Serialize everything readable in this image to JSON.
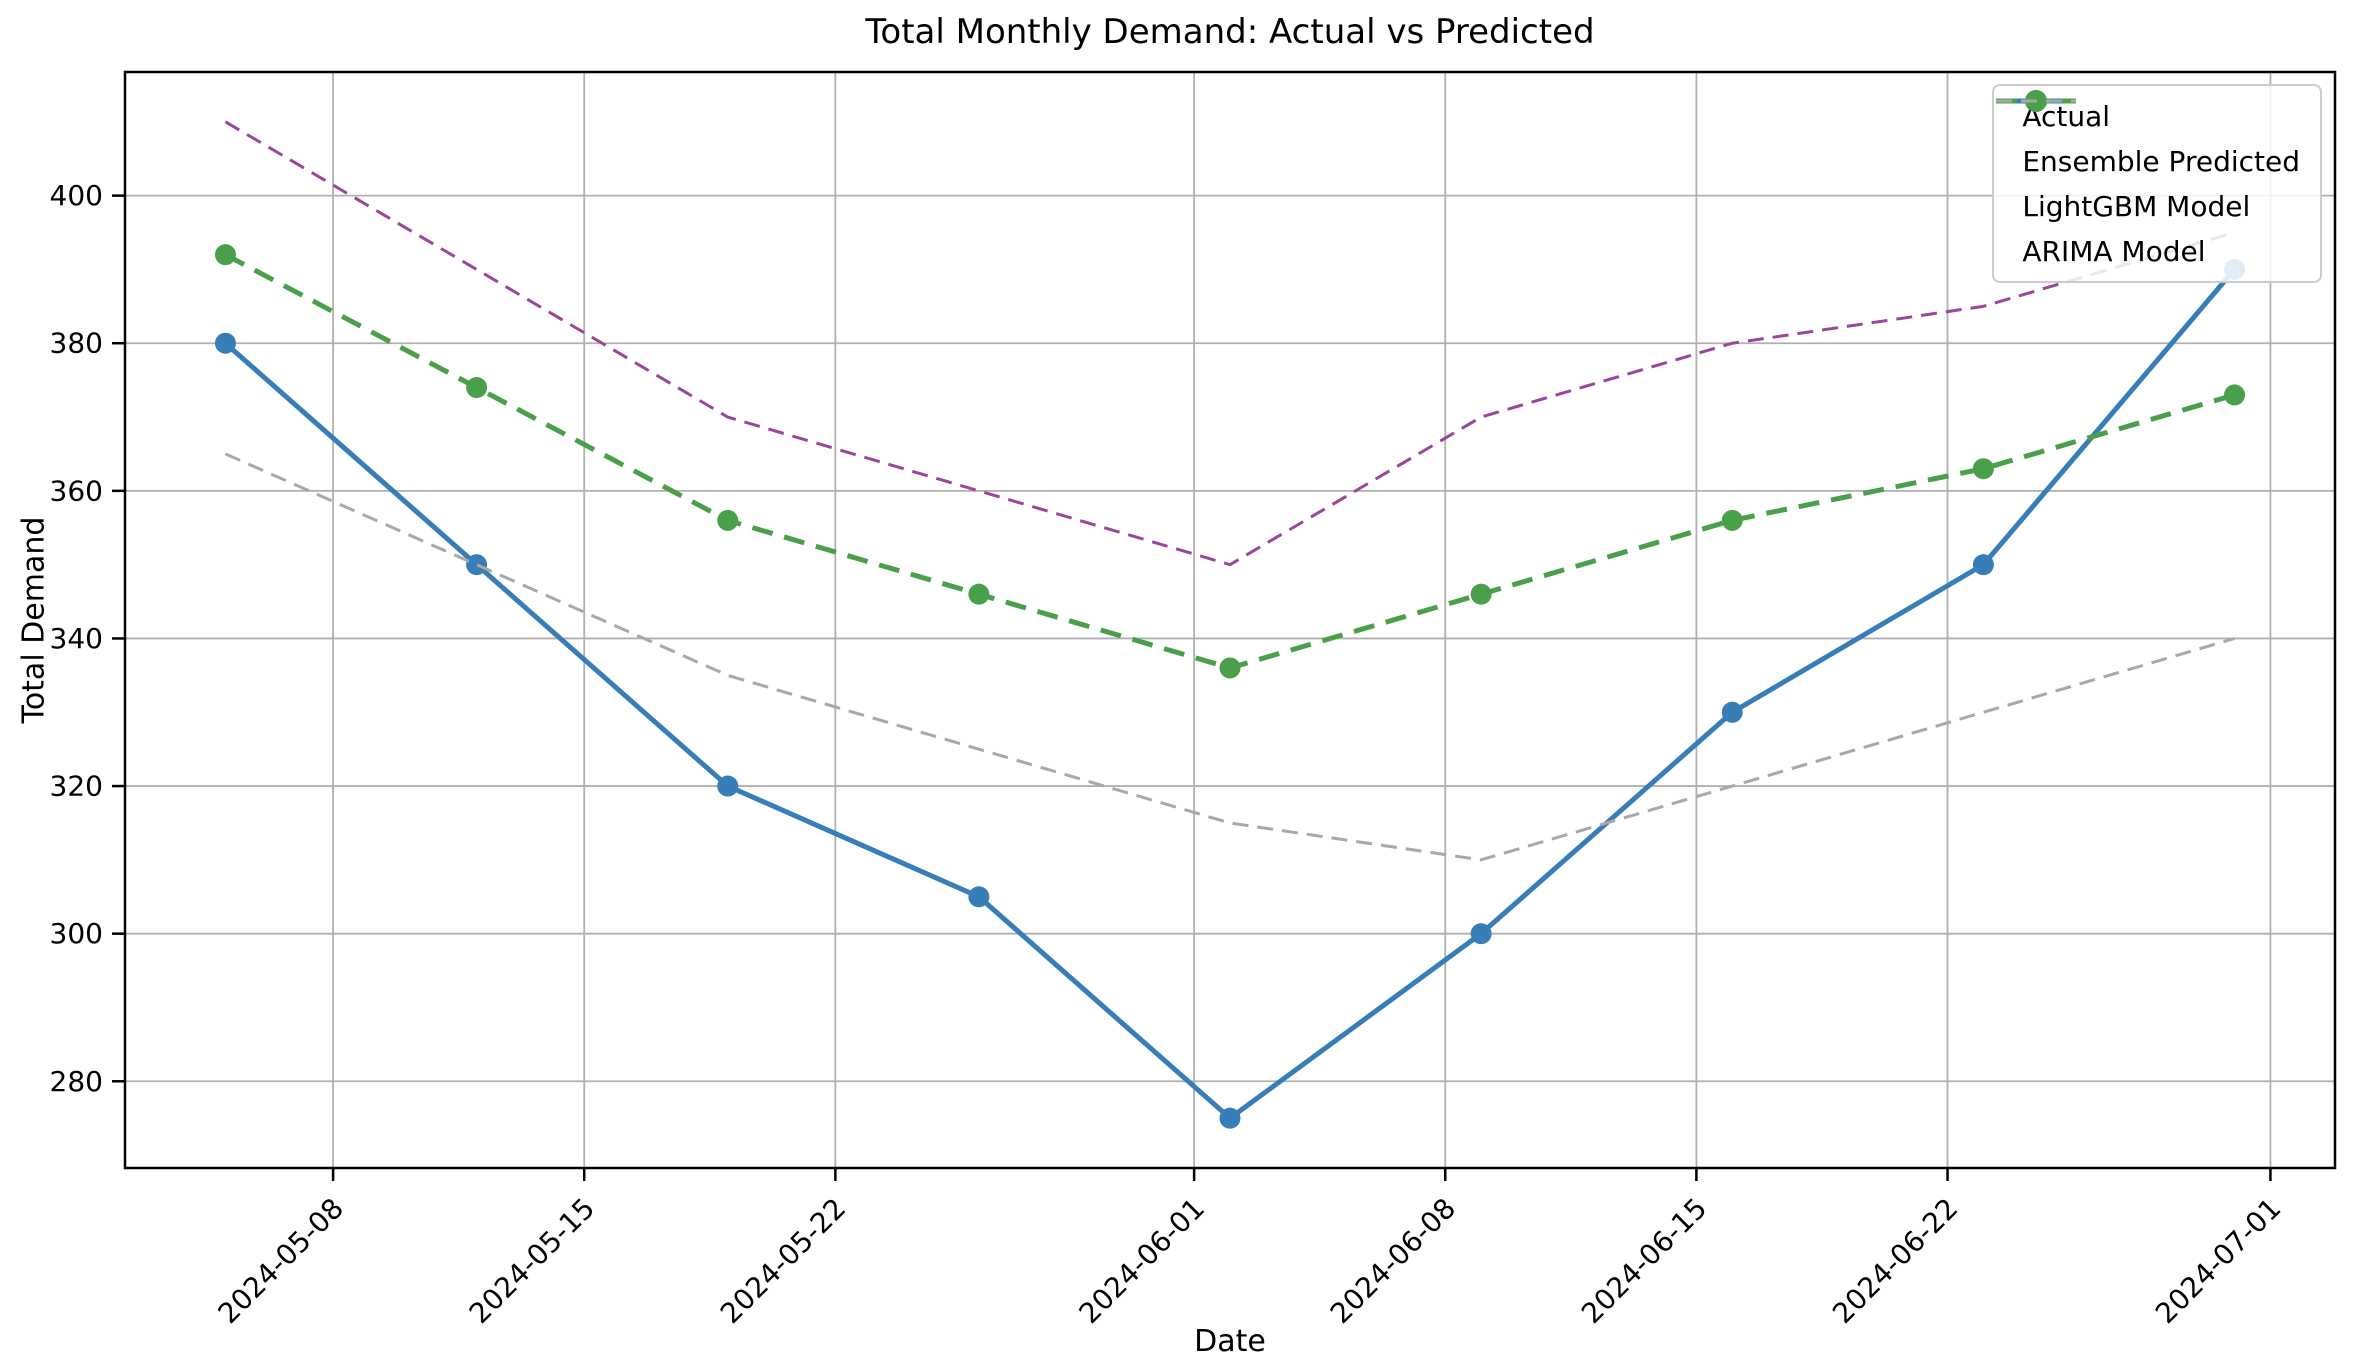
{
  "chart_data": {
    "type": "line",
    "title": "Total Monthly Demand: Actual vs Predicted",
    "xlabel": "Date",
    "ylabel": "Total Demand",
    "x": [
      "2024-05-05",
      "2024-05-12",
      "2024-05-19",
      "2024-05-26",
      "2024-06-02",
      "2024-06-09",
      "2024-06-16",
      "2024-06-23",
      "2024-06-30"
    ],
    "point_days": [
      0,
      7,
      14,
      21,
      28,
      35,
      42,
      49,
      56
    ],
    "series": [
      {
        "name": "Actual",
        "color": "#377eb8",
        "style": "solid",
        "marker": true,
        "values": [
          380,
          350,
          320,
          305,
          275,
          300,
          330,
          350,
          390
        ]
      },
      {
        "name": "Ensemble Predicted",
        "color": "#4aa04a",
        "style": "dashed",
        "marker": true,
        "values": [
          392,
          374,
          356,
          346,
          336,
          346,
          356,
          363,
          373
        ]
      },
      {
        "name": "LightGBM Model",
        "color": "#9b459b",
        "style": "dashed",
        "marker": false,
        "values": [
          410,
          390,
          370,
          360,
          350,
          370,
          380,
          385,
          395
        ]
      },
      {
        "name": "ARIMA Model",
        "color": "#a8a8a8",
        "style": "dashed",
        "marker": false,
        "values": [
          365,
          350,
          335,
          325,
          315,
          310,
          320,
          330,
          340
        ]
      }
    ],
    "x_ticks": [
      {
        "day": 3,
        "label": "2024-05-08"
      },
      {
        "day": 10,
        "label": "2024-05-15"
      },
      {
        "day": 17,
        "label": "2024-05-22"
      },
      {
        "day": 27,
        "label": "2024-06-01"
      },
      {
        "day": 34,
        "label": "2024-06-08"
      },
      {
        "day": 41,
        "label": "2024-06-15"
      },
      {
        "day": 48,
        "label": "2024-06-22"
      },
      {
        "day": 57,
        "label": "2024-07-01"
      }
    ],
    "y_ticks": [
      280,
      300,
      320,
      340,
      360,
      380,
      400
    ],
    "xlim_days": [
      -2.8,
      58.8
    ],
    "ylim": [
      268.25,
      416.75
    ],
    "grid": true,
    "legend_position": "upper right"
  },
  "colors": {
    "grid": "#b0b0b0",
    "axis": "#000000",
    "legend_border": "#cccccc",
    "background": "#ffffff"
  }
}
